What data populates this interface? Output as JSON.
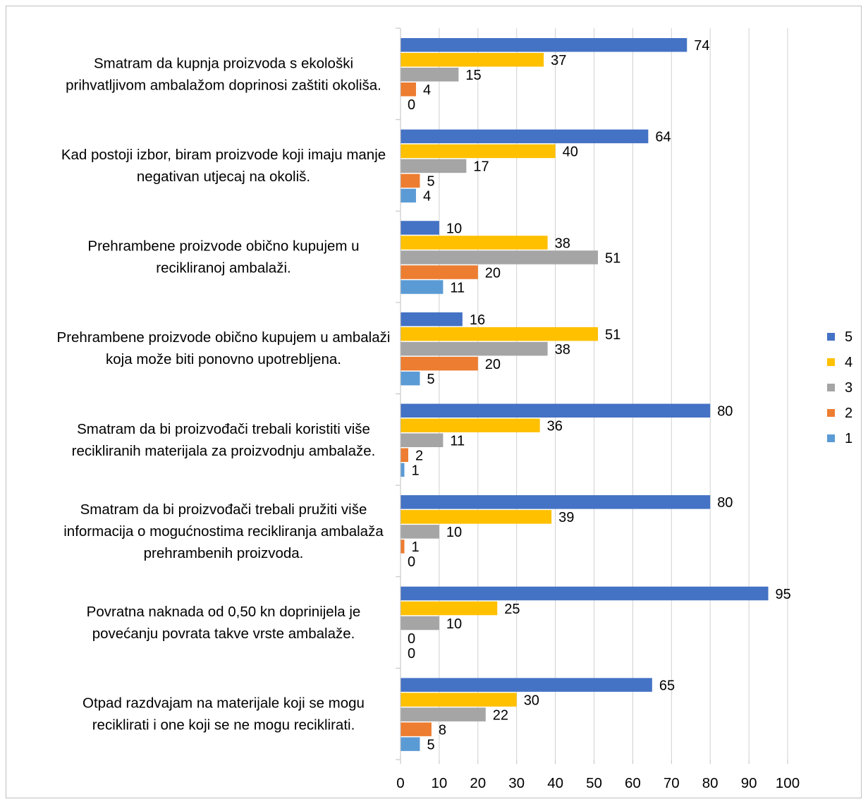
{
  "chart_data": {
    "type": "bar",
    "orientation": "horizontal",
    "title": "",
    "xlabel": "",
    "ylabel": "",
    "xlim": [
      0,
      100
    ],
    "x_ticks": [
      0,
      10,
      20,
      30,
      40,
      50,
      60,
      70,
      80,
      90,
      100
    ],
    "grid": "vertical major gridlines",
    "legend_position": "right",
    "categories": [
      "Smatram da kupnja proizvoda s ekološki prihvatljivom ambalažom doprinosi zaštiti okoliša.",
      "Kad postoji izbor, biram proizvode koji imaju manje negativan utjecaj na okoliš.",
      "Prehrambene proizvode obično kupujem u recikliranoj ambalaži.",
      "Prehrambene proizvode obično kupujem u ambalaži koja može biti ponovno upotrebljena.",
      "Smatram da bi proizvođači trebali koristiti više recikliranih materijala za proizvodnju ambalaže.",
      "Smatram da bi proizvođači trebali pružiti više informacija o mogućnostima recikliranja ambalaža prehrambenih proizvoda.",
      "Povratna naknada od 0,50 kn doprinijela je povećanju povrata takve vrste ambalaže.",
      "Otpad razdvajam na materijale koji se mogu reciklirati i one koji se ne mogu reciklirati."
    ],
    "series": [
      {
        "name": "5",
        "color": "#4472c4",
        "values": [
          74,
          64,
          10,
          16,
          80,
          80,
          95,
          65
        ]
      },
      {
        "name": "4",
        "color": "#ffc000",
        "values": [
          37,
          40,
          38,
          51,
          36,
          39,
          25,
          30
        ]
      },
      {
        "name": "3",
        "color": "#a5a5a5",
        "values": [
          15,
          17,
          51,
          38,
          11,
          10,
          10,
          22
        ]
      },
      {
        "name": "2",
        "color": "#ed7d31",
        "values": [
          4,
          5,
          20,
          20,
          2,
          1,
          0,
          8
        ]
      },
      {
        "name": "1",
        "color": "#5b9bd5",
        "values": [
          0,
          4,
          11,
          5,
          1,
          0,
          0,
          5
        ]
      }
    ]
  }
}
